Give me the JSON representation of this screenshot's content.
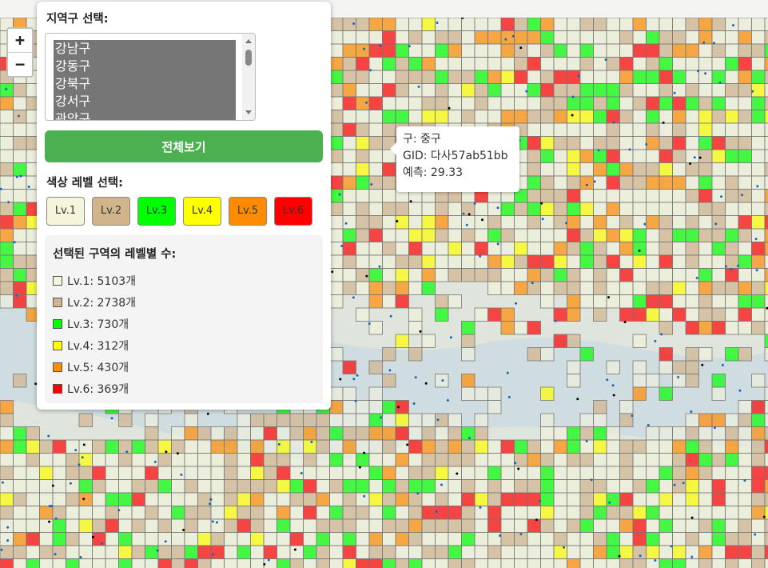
{
  "district_panel": {
    "title": "지역구 선택:",
    "districts": [
      "강남구",
      "강동구",
      "강북구",
      "강서구",
      "관악구"
    ]
  },
  "view_all_label": "전체보기",
  "level_panel": {
    "title": "색상 레벨 선택:",
    "levels": [
      {
        "label": "Lv.1",
        "color": "#f5f5dc"
      },
      {
        "label": "Lv.2",
        "color": "#d2b48c"
      },
      {
        "label": "Lv.3",
        "color": "#00ff00"
      },
      {
        "label": "Lv.4",
        "color": "#ffff00"
      },
      {
        "label": "Lv.5",
        "color": "#ff8c00"
      },
      {
        "label": "Lv.6",
        "color": "#ff0000"
      }
    ]
  },
  "counts": {
    "title": "선택된 구역의 레벨별 수:",
    "rows": [
      {
        "text": "Lv.1: 5103개",
        "color": "#f5f5dc"
      },
      {
        "text": "Lv.2: 2738개",
        "color": "#d2b48c"
      },
      {
        "text": "Lv.3: 730개",
        "color": "#00ff00"
      },
      {
        "text": "Lv.4: 312개",
        "color": "#ffff00"
      },
      {
        "text": "Lv.5: 430개",
        "color": "#ff8c00"
      },
      {
        "text": "Lv.6: 369개",
        "color": "#ff0000"
      }
    ]
  },
  "tooltip": {
    "district": "구: 중구",
    "gid": "GID: 다사57ab51bb",
    "prediction": "예측: 29.33"
  },
  "zoom": {
    "in": "+",
    "out": "−"
  }
}
